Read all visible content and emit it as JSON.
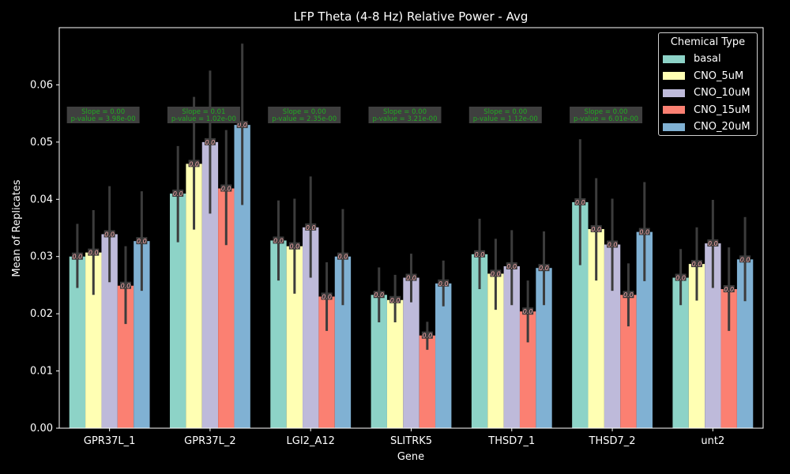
{
  "colors": {
    "background": "#000000",
    "axis": "#ffffff",
    "error_bar": "#3c3c3c",
    "value_label": "#f4a6a8",
    "value_label_bg": "#3a3a3a",
    "annotation_text": "#22aa22",
    "annotation_bg": "#3f3f3f"
  },
  "chart_data": {
    "type": "bar",
    "title": "LFP Theta (4-8 Hz) Relative Power - Avg",
    "xlabel": "Gene",
    "ylabel": "Mean of Replicates",
    "ylim": [
      0,
      0.07
    ],
    "yticks": [
      "0.00",
      "0.01",
      "0.02",
      "0.03",
      "0.04",
      "0.05",
      "0.06"
    ],
    "categories": [
      "GPR37L_1",
      "GPR37L_2",
      "LGI2_A12",
      "SLITRK5",
      "THSD7_1",
      "THSD7_2",
      "unt2"
    ],
    "legend": {
      "title": "Chemical Type",
      "placement": "upper right"
    },
    "series": [
      {
        "name": "basal",
        "color": "#8dd3c7",
        "values": [
          0.03,
          0.041,
          0.0328,
          0.0233,
          0.0304,
          0.0395,
          0.0263
        ],
        "err_low": [
          0.0245,
          0.0325,
          0.0258,
          0.0185,
          0.0243,
          0.0285,
          0.0215
        ],
        "err_high": [
          0.0357,
          0.0493,
          0.0398,
          0.0281,
          0.0366,
          0.0505,
          0.0313
        ]
      },
      {
        "name": "CNO_5uM",
        "color": "#ffffb3",
        "values": [
          0.0307,
          0.0462,
          0.0318,
          0.0224,
          0.027,
          0.0348,
          0.0287
        ],
        "err_low": [
          0.0233,
          0.0347,
          0.0235,
          0.0185,
          0.0207,
          0.0258,
          0.0223
        ],
        "err_high": [
          0.0381,
          0.0579,
          0.0401,
          0.0268,
          0.0331,
          0.0437,
          0.0351
        ]
      },
      {
        "name": "CNO_10uM",
        "color": "#bebada",
        "values": [
          0.0339,
          0.05,
          0.0351,
          0.0263,
          0.0283,
          0.0321,
          0.0323
        ],
        "err_low": [
          0.0255,
          0.0375,
          0.0263,
          0.022,
          0.0215,
          0.024,
          0.0245
        ],
        "err_high": [
          0.0423,
          0.0625,
          0.044,
          0.0305,
          0.0346,
          0.0401,
          0.0399
        ]
      },
      {
        "name": "CNO_15uM",
        "color": "#fb8072",
        "values": [
          0.0249,
          0.0419,
          0.023,
          0.0162,
          0.0204,
          0.0233,
          0.0243
        ],
        "err_low": [
          0.0182,
          0.032,
          0.017,
          0.0137,
          0.015,
          0.0178,
          0.017
        ],
        "err_high": [
          0.0318,
          0.0521,
          0.029,
          0.0186,
          0.0258,
          0.0288,
          0.0316
        ]
      },
      {
        "name": "CNO_20uM",
        "color": "#80b1d3",
        "values": [
          0.0327,
          0.053,
          0.03,
          0.0253,
          0.028,
          0.0343,
          0.0295
        ],
        "err_low": [
          0.024,
          0.039,
          0.0215,
          0.0213,
          0.0215,
          0.0257,
          0.0222
        ],
        "err_high": [
          0.0414,
          0.0672,
          0.0383,
          0.0293,
          0.0344,
          0.043,
          0.0369
        ]
      }
    ],
    "bar_value_label": "0.0",
    "annotations": [
      {
        "category": "GPR37L_1",
        "line1": "Slope = 0.00",
        "line2": "p-value = 3.98e-00"
      },
      {
        "category": "GPR37L_2",
        "line1": "Slope = 0.01",
        "line2": "p-value = 1.02e-00"
      },
      {
        "category": "LGI2_A12",
        "line1": "Slope = 0.00",
        "line2": "p-value = 2.35e-00"
      },
      {
        "category": "SLITRK5",
        "line1": "Slope = 0.00",
        "line2": "p-value = 3.21e-00"
      },
      {
        "category": "THSD7_1",
        "line1": "Slope = 0.00",
        "line2": "p-value = 1.12e-00"
      },
      {
        "category": "THSD7_2",
        "line1": "Slope = 0.00",
        "line2": "p-value = 6.01e-00"
      },
      {
        "category": "unt2",
        "line1": "Slope = 0.00",
        "line2": "p-value = 2.11e-00"
      }
    ]
  }
}
